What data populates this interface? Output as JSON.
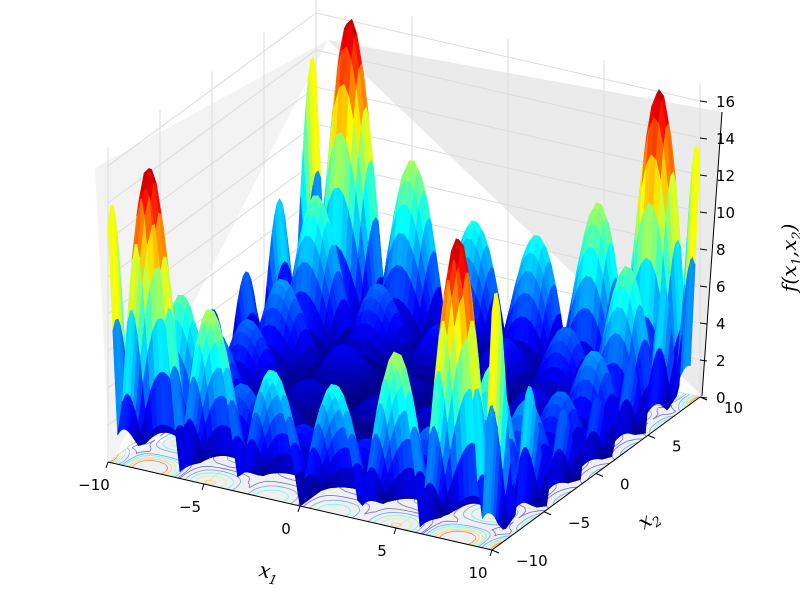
{
  "chart_data": {
    "type": "surface3d",
    "title": "",
    "colormap": "jet",
    "contour_projection": true,
    "grid": true,
    "x_axis": {
      "var": "x",
      "sub": "1",
      "range": [
        -10,
        10
      ],
      "ticks": [
        "−10",
        "−5",
        "0",
        "5",
        "10"
      ]
    },
    "y_axis": {
      "var": "x",
      "sub": "2",
      "range": [
        -10,
        10
      ],
      "ticks": [
        "−10",
        "−5",
        "0",
        "5",
        "10"
      ]
    },
    "z_axis": {
      "label": "f(x₁,x₂)",
      "label_text": "f(x",
      "label_sub1": "1",
      "label_mid": ",x",
      "label_sub2": "2",
      "label_end": ")",
      "range": [
        0,
        17
      ],
      "ticks": [
        "0",
        "2",
        "4",
        "6",
        "8",
        "10",
        "12",
        "14",
        "16"
      ]
    },
    "z_min": 0,
    "z_max": 17
  }
}
